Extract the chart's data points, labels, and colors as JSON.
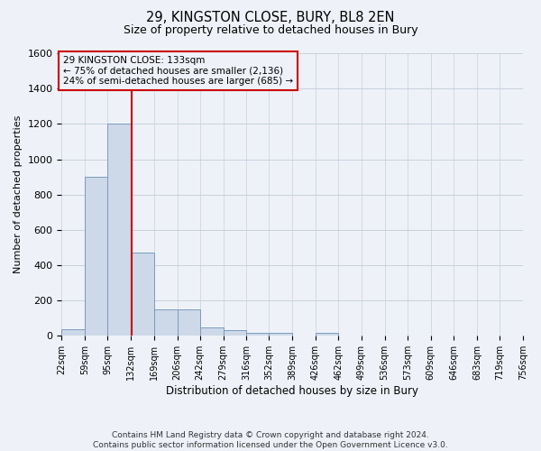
{
  "title": "29, KINGSTON CLOSE, BURY, BL8 2EN",
  "subtitle": "Size of property relative to detached houses in Bury",
  "xlabel": "Distribution of detached houses by size in Bury",
  "ylabel": "Number of detached properties",
  "footer_line1": "Contains HM Land Registry data © Crown copyright and database right 2024.",
  "footer_line2": "Contains public sector information licensed under the Open Government Licence v3.0.",
  "annotation_line1": "29 KINGSTON CLOSE: 133sqm",
  "annotation_line2": "← 75% of detached houses are smaller (2,136)",
  "annotation_line3": "24% of semi-detached houses are larger (685) →",
  "property_sqm": 133,
  "bar_color": "#cdd8e8",
  "bar_edge_color": "#7a9cbf",
  "vline_color": "#cc0000",
  "annotation_box_edge": "#cc0000",
  "grid_color": "#c8d0dc",
  "background_color": "#eef2f8",
  "ylim": [
    0,
    1600
  ],
  "yticks": [
    0,
    200,
    400,
    600,
    800,
    1000,
    1200,
    1400,
    1600
  ],
  "bin_edges": [
    22,
    59,
    95,
    132,
    169,
    206,
    242,
    279,
    316,
    352,
    389,
    426,
    462,
    499,
    536,
    573,
    609,
    646,
    683,
    719,
    756
  ],
  "bin_labels": [
    "22sqm",
    "59sqm",
    "95sqm",
    "132sqm",
    "169sqm",
    "206sqm",
    "242sqm",
    "279sqm",
    "316sqm",
    "352sqm",
    "389sqm",
    "426sqm",
    "462sqm",
    "499sqm",
    "536sqm",
    "573sqm",
    "609sqm",
    "646sqm",
    "683sqm",
    "719sqm",
    "756sqm"
  ],
  "bar_heights": [
    40,
    900,
    1200,
    470,
    150,
    150,
    50,
    30,
    15,
    15,
    0,
    15,
    0,
    0,
    0,
    0,
    0,
    0,
    0,
    0
  ]
}
